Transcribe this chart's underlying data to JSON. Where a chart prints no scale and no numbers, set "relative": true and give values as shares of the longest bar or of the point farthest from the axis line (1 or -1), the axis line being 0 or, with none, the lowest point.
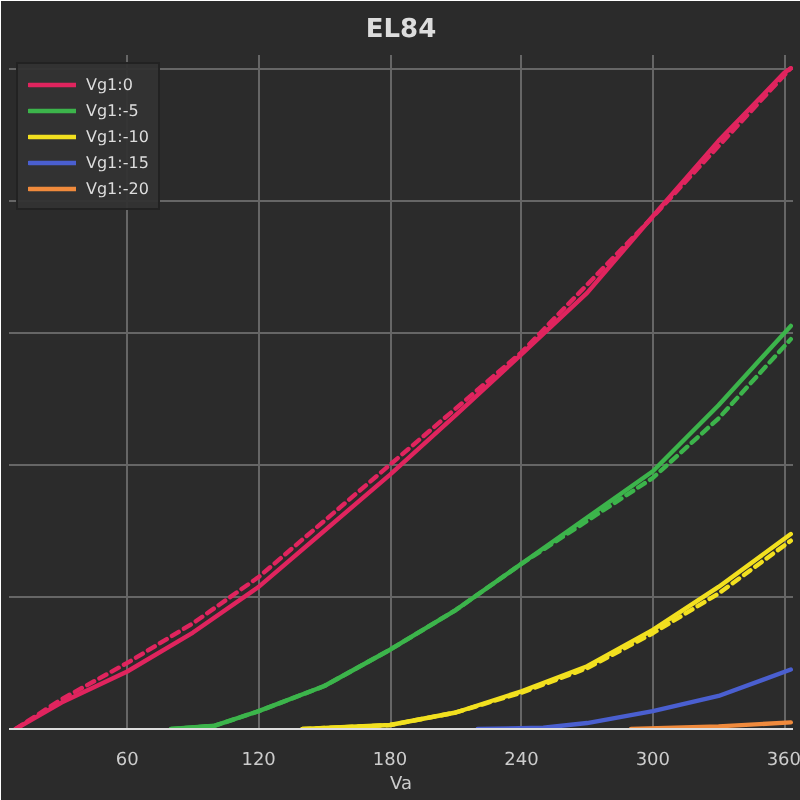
{
  "chart_data": {
    "type": "line",
    "title": "EL84",
    "xlabel": "Va",
    "relative": true,
    "xlim": [
      6,
      364
    ],
    "xticks": [
      60,
      120,
      180,
      240,
      300,
      360
    ],
    "grid": true,
    "legend": "top left",
    "line_style": "solid",
    "series": [
      {
        "name": "Vg1:0",
        "color": "#e0245e",
        "x": [
          9,
          30,
          60,
          90,
          120,
          150,
          180,
          210,
          240,
          270,
          300,
          330,
          360,
          363
        ],
        "values": [
          0,
          0.04,
          0.087,
          0.146,
          0.215,
          0.3,
          0.385,
          0.475,
          0.567,
          0.66,
          0.776,
          0.89,
          0.993,
          1.0
        ]
      },
      {
        "name": "Vg1:-5",
        "color": "#3cb44b",
        "x": [
          80,
          100,
          120,
          150,
          180,
          210,
          240,
          270,
          300,
          330,
          363
        ],
        "values": [
          0,
          0.005,
          0.027,
          0.065,
          0.12,
          0.18,
          0.25,
          0.32,
          0.39,
          0.49,
          0.61
        ]
      },
      {
        "name": "Vg1:-10",
        "color": "#f2e01f",
        "x": [
          140,
          180,
          210,
          240,
          270,
          300,
          330,
          363
        ],
        "values": [
          0,
          0.006,
          0.025,
          0.057,
          0.095,
          0.15,
          0.215,
          0.295
        ]
      },
      {
        "name": "Vg1:-15",
        "color": "#4a5fd0",
        "x": [
          220,
          250,
          270,
          300,
          330,
          363
        ],
        "values": [
          0,
          0.002,
          0.009,
          0.027,
          0.05,
          0.09
        ]
      },
      {
        "name": "Vg1:-20",
        "color": "#f08a3c",
        "x": [
          290,
          330,
          363
        ],
        "values": [
          0,
          0.004,
          0.01
        ]
      },
      {
        "color": "#e0245e",
        "line_style": "dashed",
        "x": [
          9,
          30,
          60,
          90,
          120,
          150,
          180,
          240,
          300,
          363
        ],
        "values": [
          0,
          0.045,
          0.1,
          0.16,
          0.23,
          0.315,
          0.4,
          0.57,
          0.775,
          1.0
        ]
      },
      {
        "color": "#3cb44b",
        "line_style": "dashed",
        "x": [
          80,
          100,
          120,
          150,
          180,
          210,
          240,
          270,
          300,
          330,
          363
        ],
        "values": [
          0,
          0.005,
          0.027,
          0.065,
          0.12,
          0.18,
          0.25,
          0.315,
          0.38,
          0.47,
          0.59
        ]
      },
      {
        "color": "#f2e01f",
        "line_style": "dashed",
        "x": [
          140,
          180,
          210,
          240,
          270,
          300,
          330,
          363
        ],
        "values": [
          0,
          0.006,
          0.025,
          0.055,
          0.092,
          0.145,
          0.205,
          0.285
        ]
      }
    ]
  }
}
